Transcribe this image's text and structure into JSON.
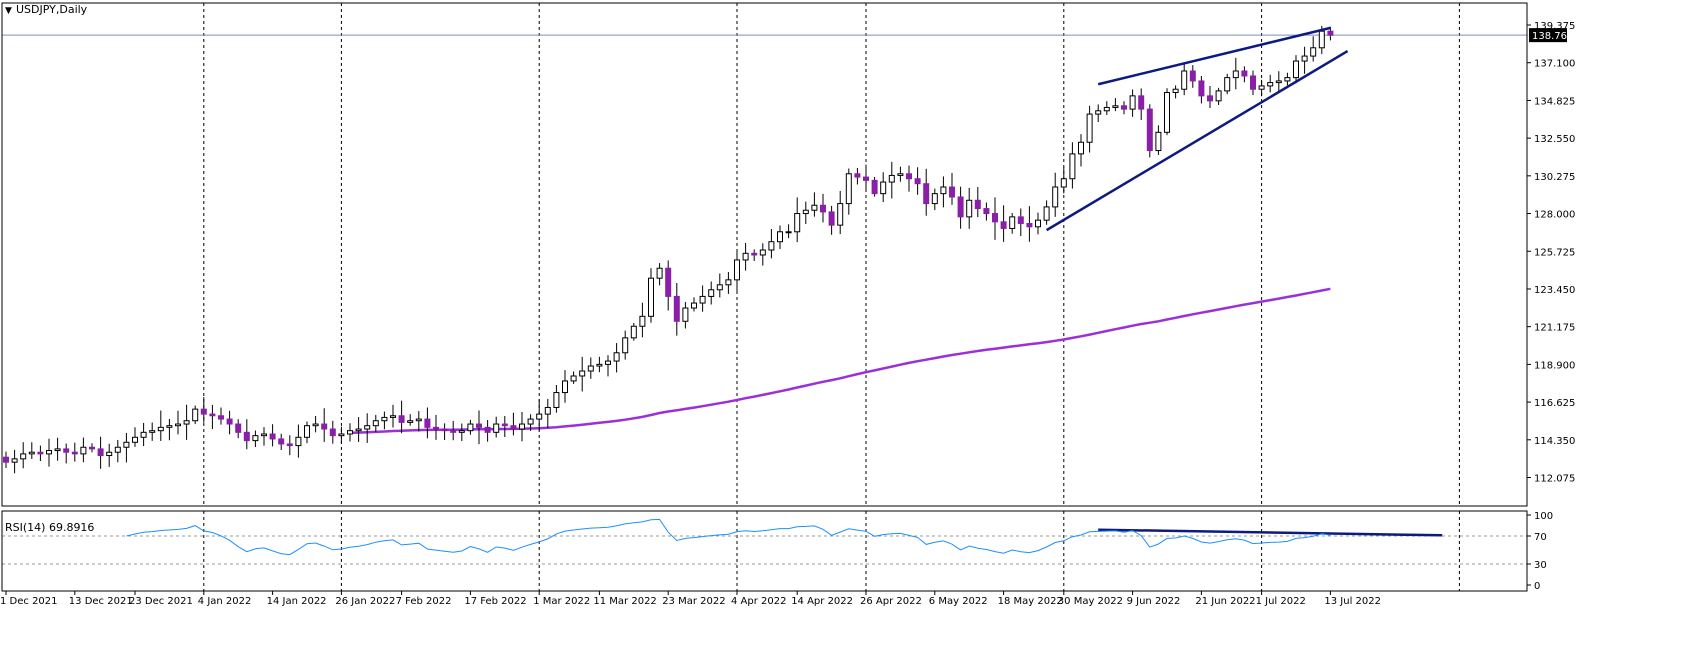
{
  "chart_data": {
    "type": "candlestick",
    "title": "USDJPY,Daily",
    "symbol": "USDJPY",
    "timeframe": "Daily",
    "colors": {
      "bull_body": "#ffffff",
      "bear_body": "#8b1fa9",
      "candle_outline": "#000000",
      "moving_average": "#9b30d9",
      "trendline": "#0d1a80",
      "rsi_line": "#1e90ff",
      "current_price_line": "#7a8fb0",
      "background": "#ffffff"
    },
    "price_axis": {
      "ticks": [
        "139.375",
        "137.100",
        "134.825",
        "132.550",
        "130.275",
        "128.000",
        "125.725",
        "123.450",
        "121.175",
        "118.900",
        "116.625",
        "114.350",
        "112.075"
      ],
      "range": [
        112.075,
        139.375
      ],
      "current_price_label": "138.763",
      "current_price": 138.763
    },
    "x_axis_labels": [
      "1 Dec 2021",
      "13 Dec 2021",
      "23 Dec 2021",
      "4 Jan 2022",
      "14 Jan 2022",
      "26 Jan 2022",
      "7 Feb 2022",
      "17 Feb 2022",
      "1 Mar 2022",
      "11 Mar 2022",
      "23 Mar 2022",
      "4 Apr 2022",
      "14 Apr 2022",
      "26 Apr 2022",
      "6 May 2022",
      "18 May 2022",
      "30 May 2022",
      "9 Jun 2022",
      "21 Jun 2022",
      "1 Jul 2022",
      "13 Jul 2022"
    ],
    "vertical_grid_at_labels": [
      "4 Jan 2022",
      "26 Jan 2022",
      "1 Mar 2022",
      "4 Apr 2022",
      "26 Apr 2022",
      "30 May 2022",
      "1 Jul 2022"
    ],
    "grid_after_last_candle_days": 15,
    "close": [
      113.0,
      113.2,
      113.5,
      113.6,
      113.5,
      113.7,
      113.8,
      113.6,
      113.5,
      113.9,
      113.8,
      113.4,
      113.6,
      113.9,
      114.2,
      114.5,
      114.8,
      114.9,
      115.1,
      115.2,
      115.3,
      115.5,
      116.2,
      115.9,
      115.8,
      115.6,
      115.3,
      114.8,
      114.3,
      114.6,
      114.7,
      114.4,
      114.1,
      114.0,
      114.5,
      115.2,
      115.3,
      115.0,
      114.6,
      114.7,
      114.9,
      115.0,
      115.2,
      115.5,
      115.7,
      115.8,
      115.4,
      115.5,
      115.6,
      115.1,
      115.0,
      114.9,
      114.8,
      114.9,
      115.3,
      115.1,
      114.8,
      115.3,
      115.2,
      115.0,
      115.3,
      115.6,
      115.9,
      116.3,
      117.2,
      117.9,
      118.2,
      118.5,
      118.8,
      118.9,
      119.1,
      119.6,
      120.5,
      121.2,
      121.8,
      124.1,
      124.7,
      123.0,
      121.5,
      122.3,
      122.6,
      123.0,
      123.4,
      123.7,
      124.0,
      125.2,
      125.6,
      125.5,
      125.8,
      126.3,
      126.9,
      126.9,
      128.0,
      128.2,
      128.5,
      128.1,
      127.3,
      128.6,
      130.4,
      130.2,
      130.0,
      129.2,
      129.9,
      130.3,
      130.4,
      130.1,
      129.8,
      128.6,
      129.2,
      129.6,
      129.0,
      127.8,
      128.8,
      128.3,
      128.0,
      127.5,
      127.1,
      127.8,
      127.4,
      127.2,
      127.6,
      128.4,
      129.6,
      130.1,
      131.6,
      132.3,
      134.0,
      134.2,
      134.4,
      134.5,
      134.3,
      135.1,
      134.3,
      131.8,
      132.9,
      135.3,
      135.5,
      136.6,
      136.0,
      135.1,
      134.8,
      135.4,
      136.2,
      136.6,
      136.3,
      135.5,
      135.7,
      135.9,
      136.0,
      136.2,
      137.2,
      137.5,
      138.0,
      139.0,
      138.76
    ],
    "rsi": {
      "label": "RSI(14) 69.8916",
      "period": 14,
      "current_value": 69.8916,
      "levels": [
        30,
        70
      ],
      "axis_ticks": [
        "100",
        "70",
        "30",
        "0"
      ],
      "range": [
        0,
        100
      ]
    },
    "annotations": {
      "rising_wedge_upper": {
        "from": {
          "index": 127,
          "price": 135.8
        },
        "to": {
          "index": 154,
          "price": 139.2
        }
      },
      "rising_wedge_lower": {
        "from": {
          "index": 121,
          "price": 127.0
        },
        "to": {
          "index": 156,
          "price": 137.8
        }
      },
      "rsi_divergence": {
        "from": {
          "index": 127,
          "value": 79
        },
        "to": {
          "index": 167,
          "value": 71
        }
      }
    }
  }
}
